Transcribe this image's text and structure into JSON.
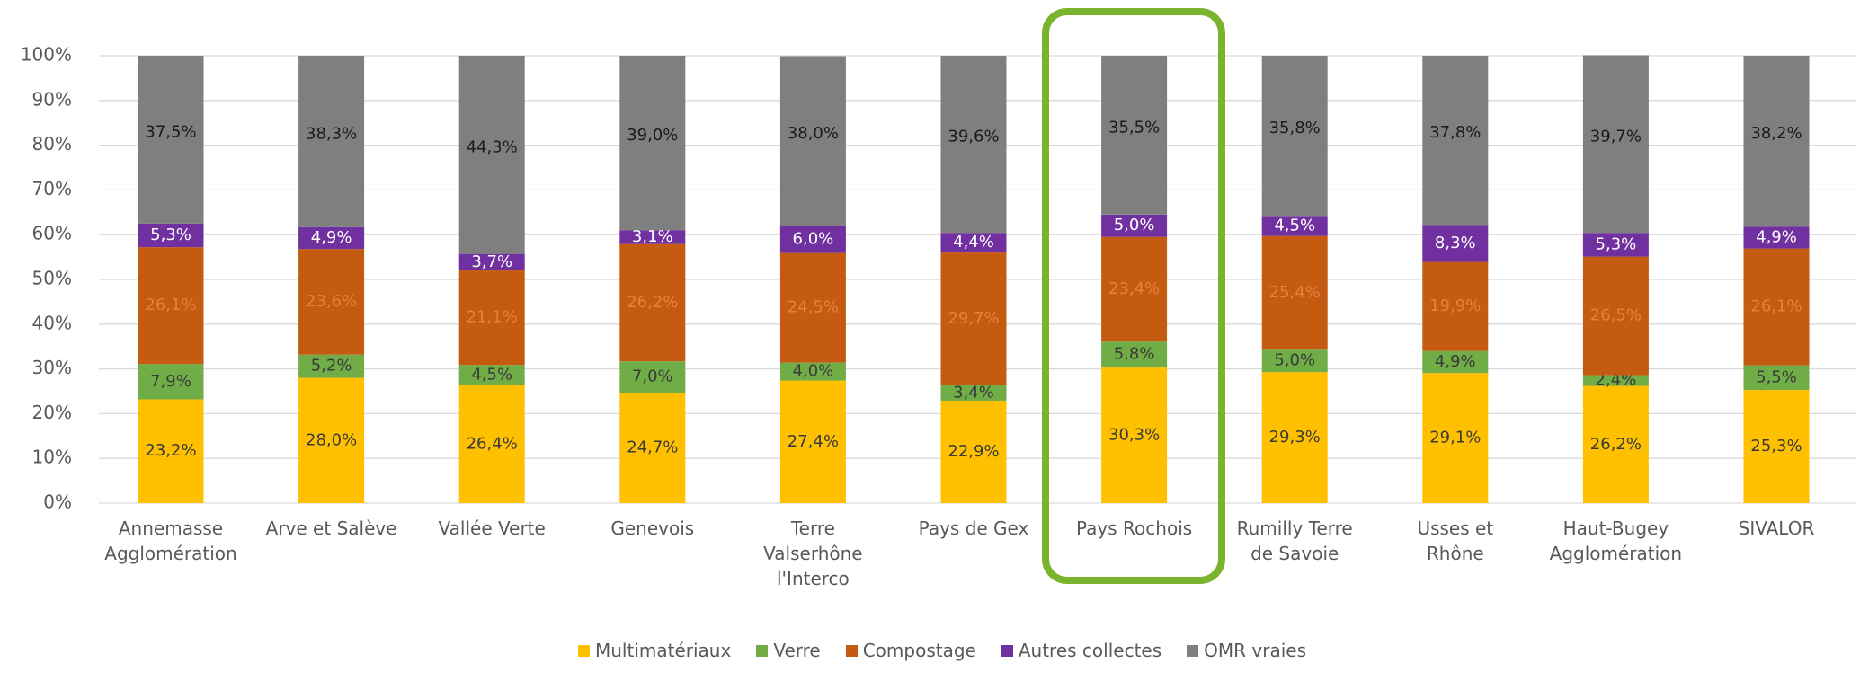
{
  "chart_data": {
    "type": "stacked_bar",
    "categories": [
      "Annemasse Agglomération",
      "Arve et Salève",
      "Vallée Verte",
      "Genevois",
      "Terre Valserhône l'Interco",
      "Pays de Gex",
      "Pays Rochois",
      "Rumilly Terre de Savoie",
      "Usses et Rhône",
      "Haut-Bugey Agglomération",
      "SIVALOR"
    ],
    "series": [
      {
        "name": "Multimatériaux",
        "color": "#ffc000",
        "values": [
          23.2,
          28.0,
          26.4,
          24.7,
          27.4,
          22.9,
          30.3,
          29.3,
          29.1,
          26.2,
          25.3
        ],
        "value_labels": [
          "23,2%",
          "28,0%",
          "26,4%",
          "24,7%",
          "27,4%",
          "22,9%",
          "30,3%",
          "29,3%",
          "29,1%",
          "26,2%",
          "25,3%"
        ]
      },
      {
        "name": "Verre",
        "color": "#70ad47",
        "values": [
          7.9,
          5.2,
          4.5,
          7.0,
          4.0,
          3.4,
          5.8,
          5.0,
          4.9,
          2.4,
          5.5
        ],
        "value_labels": [
          "7,9%",
          "5,2%",
          "4,5%",
          "7,0%",
          "4,0%",
          "3,4%",
          "5,8%",
          "5,0%",
          "4,9%",
          "2,4%",
          "5,5%"
        ]
      },
      {
        "name": "Compostage",
        "color": "#c55a11",
        "values": [
          26.1,
          23.6,
          21.1,
          26.2,
          24.5,
          29.7,
          23.4,
          25.4,
          19.9,
          26.5,
          26.1
        ],
        "value_labels": [
          "26,1%",
          "23,6%",
          "21,1%",
          "26,2%",
          "24,5%",
          "29,7%",
          "23,4%",
          "25,4%",
          "19,9%",
          "26,5%",
          "26,1%"
        ]
      },
      {
        "name": "Autres collectes",
        "color": "#7030a0",
        "values": [
          5.3,
          4.9,
          3.7,
          3.1,
          6.0,
          4.4,
          5.0,
          4.5,
          8.3,
          5.3,
          4.9
        ],
        "value_labels": [
          "5,3%",
          "4,9%",
          "3,7%",
          "3,1%",
          "6,0%",
          "4,4%",
          "5,0%",
          "4,5%",
          "8,3%",
          "5,3%",
          "4,9%"
        ]
      },
      {
        "name": "OMR vraies",
        "color": "#7f7f7f",
        "values": [
          37.5,
          38.3,
          44.3,
          39.0,
          38.0,
          39.6,
          35.5,
          35.8,
          37.8,
          39.7,
          38.2
        ],
        "value_labels": [
          "37,5%",
          "38,3%",
          "44,3%",
          "39,0%",
          "38,0%",
          "39,6%",
          "35,5%",
          "35,8%",
          "37,8%",
          "39,7%",
          "38,2%"
        ]
      }
    ],
    "ylim": [
      0,
      100
    ],
    "yticks": [
      {
        "value": 0,
        "label": "0%"
      },
      {
        "value": 10,
        "label": "10%"
      },
      {
        "value": 20,
        "label": "20%"
      },
      {
        "value": 30,
        "label": "30%"
      },
      {
        "value": 40,
        "label": "40%"
      },
      {
        "value": 50,
        "label": "50%"
      },
      {
        "value": 60,
        "label": "60%"
      },
      {
        "value": 70,
        "label": "70%"
      },
      {
        "value": 80,
        "label": "80%"
      },
      {
        "value": 90,
        "label": "90%"
      },
      {
        "value": 100,
        "label": "100%"
      }
    ],
    "grid": true,
    "legend": "bottom"
  }
}
